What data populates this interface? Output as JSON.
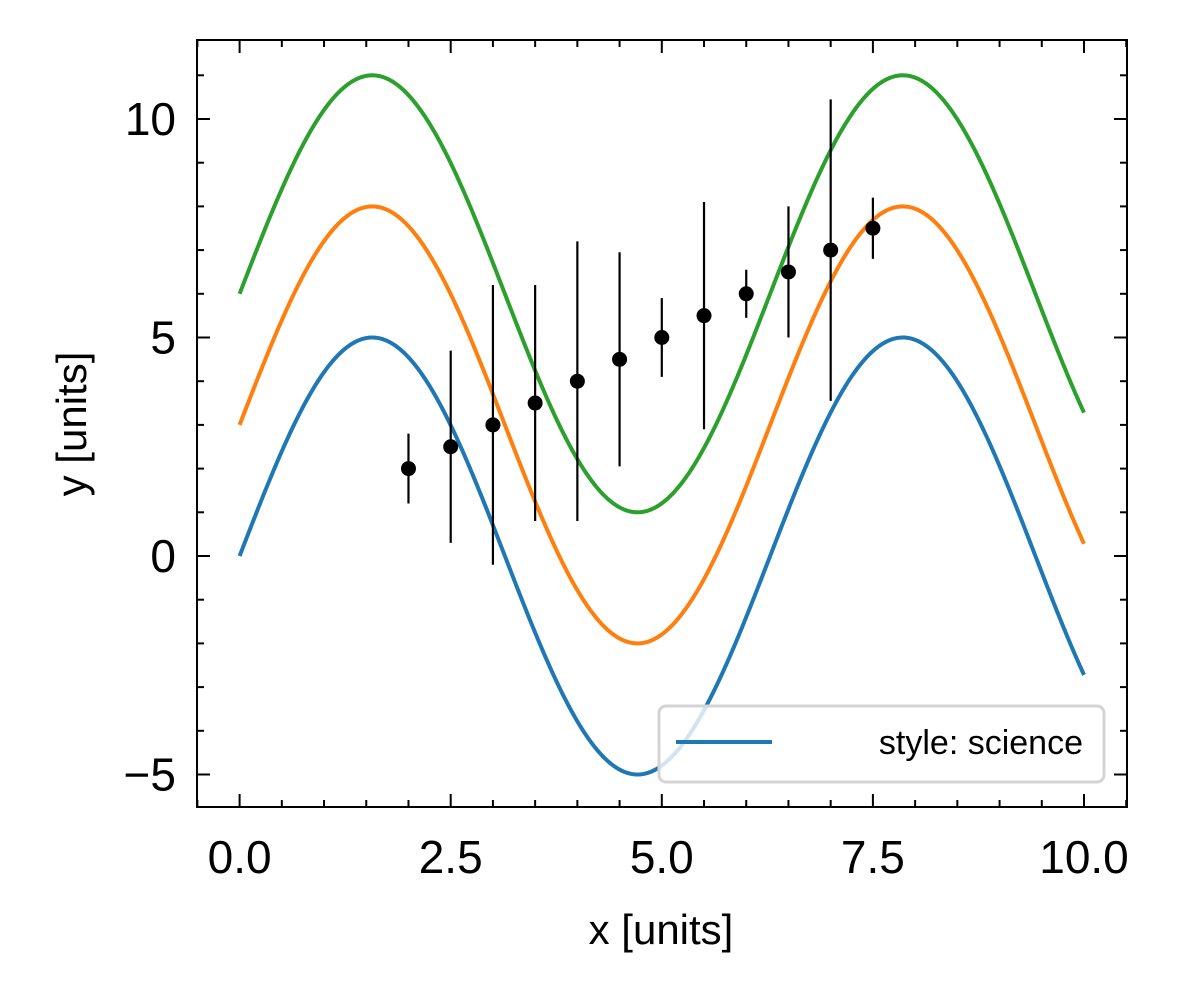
{
  "chart_data": {
    "type": "line",
    "title": "",
    "xlabel": "x [units]",
    "ylabel": "y [units]",
    "xlim": [
      -0.5,
      10.5
    ],
    "ylim": [
      -5.8,
      11.8
    ],
    "xticks": [
      0,
      2.5,
      5,
      7.5,
      10
    ],
    "xtick_labels": [
      "0.0",
      "2.5",
      "5.0",
      "7.5",
      "10.0"
    ],
    "yticks": [
      -5,
      0,
      5,
      10
    ],
    "ytick_labels": [
      "−5",
      "0",
      "5",
      "10"
    ],
    "x_minor_step": 0.5,
    "y_minor_step": 1,
    "grid": false,
    "function": "offset + 5*sin(x)",
    "x_range": [
      0,
      10
    ],
    "series": [
      {
        "name": "style: science",
        "offset": 0,
        "color": "#1f77b4",
        "in_legend": true
      },
      {
        "name": "",
        "offset": 3,
        "color": "#ff7f0e",
        "in_legend": false
      },
      {
        "name": "",
        "offset": 6,
        "color": "#2ca02c",
        "in_legend": false
      }
    ],
    "errorbar": {
      "color": "#000000",
      "points": [
        {
          "x": 2.0,
          "y": 2.0,
          "err": 0.8
        },
        {
          "x": 2.5,
          "y": 2.5,
          "err": 2.2
        },
        {
          "x": 3.0,
          "y": 3.0,
          "err": 3.2
        },
        {
          "x": 3.5,
          "y": 3.5,
          "err": 2.7
        },
        {
          "x": 4.0,
          "y": 4.0,
          "err": 3.2
        },
        {
          "x": 4.5,
          "y": 4.5,
          "err": 2.45
        },
        {
          "x": 5.0,
          "y": 5.0,
          "err": 0.9
        },
        {
          "x": 5.5,
          "y": 5.5,
          "err": 2.6
        },
        {
          "x": 6.0,
          "y": 6.0,
          "err": 0.55
        },
        {
          "x": 6.5,
          "y": 6.5,
          "err": 1.5
        },
        {
          "x": 7.0,
          "y": 7.0,
          "err": 3.45
        },
        {
          "x": 7.5,
          "y": 7.5,
          "err": 0.7
        }
      ]
    },
    "legend": {
      "location": "lower-right",
      "entries": [
        "style: science"
      ]
    }
  }
}
